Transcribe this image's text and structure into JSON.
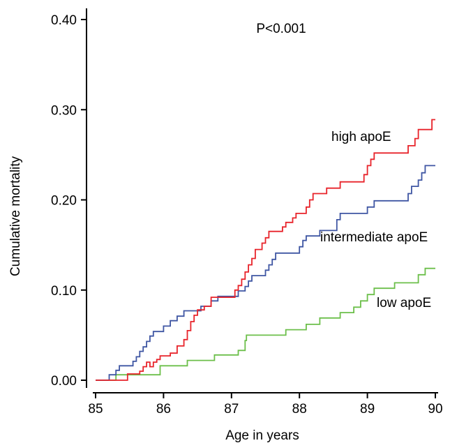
{
  "chart_data": {
    "type": "line",
    "step": true,
    "xlabel": "Age in years",
    "ylabel": "Cumulative mortality",
    "xlim": [
      84.9,
      90.05
    ],
    "ylim": [
      0,
      0.4
    ],
    "xticks": [
      85,
      86,
      87,
      88,
      89,
      90
    ],
    "xtick_labels": [
      "85",
      "86",
      "87",
      "88",
      "89",
      "90"
    ],
    "yticks": [
      0,
      0.1,
      0.2,
      0.3,
      0.4
    ],
    "ytick_labels": [
      "0.00",
      "0.10",
      "0.20",
      "0.30",
      "0.40"
    ],
    "grid": false,
    "legend": "inline labels",
    "annotation": "P<0.001",
    "series": [
      {
        "name": "high apoE",
        "color": "#e8232a",
        "points": [
          [
            85.0,
            0
          ],
          [
            85.47,
            0
          ],
          [
            85.47,
            0.007
          ],
          [
            85.65,
            0.007
          ],
          [
            85.65,
            0.01
          ],
          [
            85.7,
            0.01
          ],
          [
            85.7,
            0.015
          ],
          [
            85.75,
            0.015
          ],
          [
            85.75,
            0.02
          ],
          [
            85.8,
            0.02
          ],
          [
            85.8,
            0.015
          ],
          [
            85.85,
            0.015
          ],
          [
            85.85,
            0.02
          ],
          [
            85.9,
            0.02
          ],
          [
            85.9,
            0.023
          ],
          [
            85.95,
            0.023
          ],
          [
            85.95,
            0.027
          ],
          [
            86.1,
            0.027
          ],
          [
            86.1,
            0.03
          ],
          [
            86.2,
            0.03
          ],
          [
            86.2,
            0.038
          ],
          [
            86.3,
            0.038
          ],
          [
            86.3,
            0.045
          ],
          [
            86.35,
            0.045
          ],
          [
            86.35,
            0.055
          ],
          [
            86.4,
            0.055
          ],
          [
            86.4,
            0.065
          ],
          [
            86.45,
            0.065
          ],
          [
            86.45,
            0.072
          ],
          [
            86.5,
            0.072
          ],
          [
            86.5,
            0.078
          ],
          [
            86.6,
            0.078
          ],
          [
            86.6,
            0.082
          ],
          [
            86.7,
            0.082
          ],
          [
            86.7,
            0.092
          ],
          [
            87.05,
            0.092
          ],
          [
            87.05,
            0.1
          ],
          [
            87.1,
            0.1
          ],
          [
            87.1,
            0.105
          ],
          [
            87.15,
            0.105
          ],
          [
            87.15,
            0.112
          ],
          [
            87.2,
            0.112
          ],
          [
            87.2,
            0.12
          ],
          [
            87.25,
            0.12
          ],
          [
            87.25,
            0.128
          ],
          [
            87.3,
            0.128
          ],
          [
            87.3,
            0.135
          ],
          [
            87.35,
            0.135
          ],
          [
            87.35,
            0.145
          ],
          [
            87.45,
            0.145
          ],
          [
            87.45,
            0.152
          ],
          [
            87.5,
            0.152
          ],
          [
            87.5,
            0.158
          ],
          [
            87.55,
            0.158
          ],
          [
            87.55,
            0.165
          ],
          [
            87.75,
            0.165
          ],
          [
            87.75,
            0.17
          ],
          [
            87.8,
            0.17
          ],
          [
            87.8,
            0.175
          ],
          [
            87.9,
            0.175
          ],
          [
            87.9,
            0.18
          ],
          [
            87.95,
            0.18
          ],
          [
            87.95,
            0.185
          ],
          [
            88.1,
            0.185
          ],
          [
            88.1,
            0.192
          ],
          [
            88.15,
            0.192
          ],
          [
            88.15,
            0.2
          ],
          [
            88.2,
            0.2
          ],
          [
            88.2,
            0.207
          ],
          [
            88.4,
            0.207
          ],
          [
            88.4,
            0.213
          ],
          [
            88.6,
            0.213
          ],
          [
            88.6,
            0.22
          ],
          [
            88.95,
            0.22
          ],
          [
            88.95,
            0.228
          ],
          [
            89.0,
            0.228
          ],
          [
            89.0,
            0.238
          ],
          [
            89.05,
            0.238
          ],
          [
            89.05,
            0.245
          ],
          [
            89.1,
            0.245
          ],
          [
            89.1,
            0.252
          ],
          [
            89.6,
            0.252
          ],
          [
            89.6,
            0.26
          ],
          [
            89.7,
            0.26
          ],
          [
            89.7,
            0.268
          ],
          [
            89.75,
            0.268
          ],
          [
            89.75,
            0.278
          ],
          [
            89.95,
            0.278
          ],
          [
            89.95,
            0.289
          ],
          [
            90.0,
            0.289
          ]
        ]
      },
      {
        "name": "intermediate apoE",
        "color": "#3f56a3",
        "points": [
          [
            85.0,
            0
          ],
          [
            85.2,
            0
          ],
          [
            85.2,
            0.006
          ],
          [
            85.3,
            0.006
          ],
          [
            85.3,
            0.011
          ],
          [
            85.35,
            0.011
          ],
          [
            85.35,
            0.016
          ],
          [
            85.55,
            0.016
          ],
          [
            85.55,
            0.021
          ],
          [
            85.6,
            0.021
          ],
          [
            85.6,
            0.026
          ],
          [
            85.65,
            0.026
          ],
          [
            85.65,
            0.032
          ],
          [
            85.7,
            0.032
          ],
          [
            85.7,
            0.037
          ],
          [
            85.75,
            0.037
          ],
          [
            85.75,
            0.043
          ],
          [
            85.8,
            0.043
          ],
          [
            85.8,
            0.049
          ],
          [
            85.85,
            0.049
          ],
          [
            85.85,
            0.054
          ],
          [
            86.0,
            0.054
          ],
          [
            86.0,
            0.06
          ],
          [
            86.1,
            0.06
          ],
          [
            86.1,
            0.066
          ],
          [
            86.2,
            0.066
          ],
          [
            86.2,
            0.071
          ],
          [
            86.3,
            0.071
          ],
          [
            86.3,
            0.077
          ],
          [
            86.55,
            0.077
          ],
          [
            86.55,
            0.082
          ],
          [
            86.7,
            0.082
          ],
          [
            86.7,
            0.088
          ],
          [
            86.8,
            0.088
          ],
          [
            86.8,
            0.093
          ],
          [
            87.1,
            0.093
          ],
          [
            87.1,
            0.099
          ],
          [
            87.2,
            0.099
          ],
          [
            87.2,
            0.104
          ],
          [
            87.25,
            0.104
          ],
          [
            87.25,
            0.11
          ],
          [
            87.3,
            0.11
          ],
          [
            87.3,
            0.116
          ],
          [
            87.5,
            0.116
          ],
          [
            87.5,
            0.122
          ],
          [
            87.55,
            0.122
          ],
          [
            87.55,
            0.128
          ],
          [
            87.6,
            0.128
          ],
          [
            87.6,
            0.134
          ],
          [
            87.65,
            0.134
          ],
          [
            87.65,
            0.141
          ],
          [
            88.0,
            0.141
          ],
          [
            88.0,
            0.148
          ],
          [
            88.05,
            0.148
          ],
          [
            88.05,
            0.155
          ],
          [
            88.1,
            0.155
          ],
          [
            88.1,
            0.16
          ],
          [
            88.3,
            0.16
          ],
          [
            88.3,
            0.166
          ],
          [
            88.55,
            0.166
          ],
          [
            88.55,
            0.178
          ],
          [
            88.6,
            0.178
          ],
          [
            88.6,
            0.185
          ],
          [
            89.0,
            0.185
          ],
          [
            89.0,
            0.192
          ],
          [
            89.1,
            0.192
          ],
          [
            89.1,
            0.199
          ],
          [
            89.6,
            0.199
          ],
          [
            89.6,
            0.207
          ],
          [
            89.65,
            0.207
          ],
          [
            89.65,
            0.215
          ],
          [
            89.75,
            0.215
          ],
          [
            89.75,
            0.222
          ],
          [
            89.8,
            0.222
          ],
          [
            89.8,
            0.23
          ],
          [
            89.85,
            0.23
          ],
          [
            89.85,
            0.238
          ],
          [
            90.0,
            0.238
          ]
        ]
      },
      {
        "name": "low apoE",
        "color": "#6cbf4a",
        "points": [
          [
            85.0,
            0
          ],
          [
            85.3,
            0
          ],
          [
            85.3,
            0.006
          ],
          [
            85.95,
            0.006
          ],
          [
            85.95,
            0.016
          ],
          [
            86.35,
            0.016
          ],
          [
            86.35,
            0.022
          ],
          [
            86.75,
            0.022
          ],
          [
            86.75,
            0.028
          ],
          [
            87.1,
            0.028
          ],
          [
            87.1,
            0.033
          ],
          [
            87.2,
            0.033
          ],
          [
            87.2,
            0.044
          ],
          [
            87.22,
            0.044
          ],
          [
            87.22,
            0.05
          ],
          [
            87.8,
            0.05
          ],
          [
            87.8,
            0.056
          ],
          [
            88.1,
            0.056
          ],
          [
            88.1,
            0.062
          ],
          [
            88.3,
            0.062
          ],
          [
            88.3,
            0.069
          ],
          [
            88.6,
            0.069
          ],
          [
            88.6,
            0.075
          ],
          [
            88.8,
            0.075
          ],
          [
            88.8,
            0.081
          ],
          [
            88.9,
            0.081
          ],
          [
            88.9,
            0.088
          ],
          [
            89.0,
            0.088
          ],
          [
            89.0,
            0.095
          ],
          [
            89.1,
            0.095
          ],
          [
            89.1,
            0.102
          ],
          [
            89.4,
            0.102
          ],
          [
            89.4,
            0.108
          ],
          [
            89.75,
            0.108
          ],
          [
            89.75,
            0.117
          ],
          [
            89.85,
            0.117
          ],
          [
            89.85,
            0.124
          ],
          [
            90.0,
            0.124
          ]
        ]
      }
    ]
  }
}
